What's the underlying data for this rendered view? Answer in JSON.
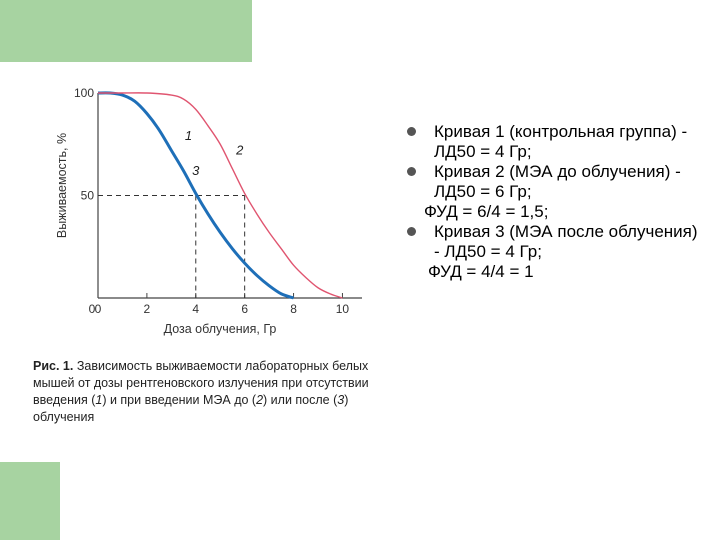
{
  "chart_data": {
    "type": "line",
    "xlabel": "Доза облучения, Гр",
    "ylabel": "Выживаемость, %",
    "xlim": [
      0,
      10.8
    ],
    "ylim": [
      0,
      100
    ],
    "x_ticks": [
      "0",
      "2",
      "4",
      "6",
      "8",
      "10"
    ],
    "x_tick_values": [
      0,
      2,
      4,
      6,
      8,
      10
    ],
    "y_ticks": [
      "0",
      "50",
      "100"
    ],
    "y_tick_values": [
      0,
      50,
      100
    ],
    "grid": false,
    "series": [
      {
        "name": "1",
        "color": "#1e6fb8",
        "x": [
          0,
          0.5,
          1,
          1.5,
          2,
          2.5,
          3,
          3.5,
          4,
          4.5,
          5,
          5.5,
          6,
          6.5,
          7,
          7.5,
          8
        ],
        "y": [
          100,
          100,
          99,
          96,
          90,
          82,
          72,
          62,
          51,
          41,
          32,
          24,
          17,
          11,
          6,
          2,
          0
        ]
      },
      {
        "name": "2",
        "color": "#e05570",
        "x": [
          0,
          1,
          2,
          3,
          3.5,
          4,
          4.5,
          5,
          5.5,
          6,
          6.5,
          7,
          7.5,
          8,
          8.5,
          9,
          9.5,
          10
        ],
        "y": [
          100,
          100,
          100,
          99,
          97,
          92,
          84,
          75,
          63,
          51,
          41,
          32,
          24,
          16,
          10,
          5,
          2,
          0
        ]
      },
      {
        "name": "3",
        "color": "#1e6fb8",
        "x": [],
        "y": []
      }
    ],
    "annotations": [
      {
        "text": "1",
        "x": 3.7,
        "y": 77
      },
      {
        "text": "2",
        "x": 5.8,
        "y": 70
      },
      {
        "text": "3",
        "x": 4.0,
        "y": 60
      }
    ],
    "ld50_lines": [
      {
        "x": 4,
        "y": 50
      },
      {
        "x": 6,
        "y": 50
      }
    ]
  },
  "caption": {
    "prefix": "Рис. 1.",
    "text_a": " Зависимость выживаемости лабораторных белых мышей от дозы рентгеновского излучения при отсутствии введения (",
    "n1": "1",
    "text_b": ") и при введении МЭА до (",
    "n2": "2",
    "text_c": ") или после (",
    "n3": "3",
    "text_d": ") облучения"
  },
  "bullets": {
    "item1": "Кривая 1 (контрольная группа) - ЛД50 = 4 Гр;",
    "item2": "Кривая 2 (МЭА до облучения) - ЛД50 = 6 Гр;",
    "fud1": "ФУД = 6/4 = 1,5;",
    "item3": "Кривая 3 (МЭА после облучения) - ЛД50 = 4 Гр;",
    "fud2": "ФУД = 4/4 = 1"
  },
  "colors": {
    "decor_green": "#a7d3a1",
    "axis": "#444444",
    "bullet": "#555555"
  }
}
